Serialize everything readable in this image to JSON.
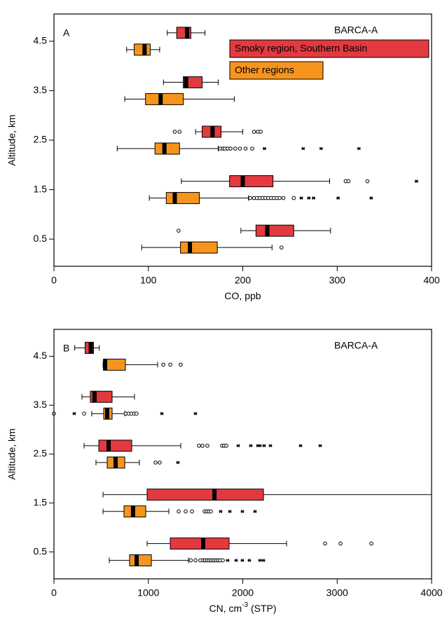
{
  "chart_data": [
    {
      "type": "boxplot",
      "orientation": "horizontal",
      "panel_label": "A",
      "annotation": "BARCA-A",
      "xlabel": "CO, ppb",
      "ylabel": "Altitude, km",
      "xlim": [
        0,
        400
      ],
      "xticks": [
        0,
        100,
        200,
        300,
        400
      ],
      "ylim": [
        -0.05,
        5.05
      ],
      "yticks": [
        0.5,
        1.5,
        2.5,
        3.5,
        4.5
      ],
      "positions": [
        0.5,
        1.5,
        2.5,
        3.5,
        4.5
      ],
      "legend": true,
      "legend_position": "upper right",
      "series": [
        {
          "name": "Smoky region, Southern Basin",
          "color": "#e23a3f",
          "boxes": [
            {
              "whisker_low": 198,
              "q1": 214,
              "median": 226,
              "q3": 254,
              "whisker_high": 293,
              "outliers": [
                132
              ],
              "extremes": []
            },
            {
              "whisker_low": 135,
              "q1": 186,
              "median": 200,
              "q3": 232,
              "whisker_high": 292,
              "outliers": [
                309,
                312,
                332
              ],
              "extremes": [
                384
              ]
            },
            {
              "whisker_low": 150,
              "q1": 157,
              "median": 168,
              "q3": 177,
              "whisker_high": 200,
              "outliers": [
                128,
                133,
                212,
                216,
                219
              ],
              "extremes": []
            },
            {
              "whisker_low": 116,
              "q1": 137,
              "median": 140,
              "q3": 157,
              "whisker_high": 174,
              "outliers": [],
              "extremes": []
            },
            {
              "whisker_low": 120,
              "q1": 130,
              "median": 141,
              "q3": 145,
              "whisker_high": 160,
              "outliers": [],
              "extremes": []
            }
          ]
        },
        {
          "name": "Other regions",
          "color": "#f7941d",
          "boxes": [
            {
              "whisker_low": 93,
              "q1": 134,
              "median": 144,
              "q3": 173,
              "whisker_high": 231,
              "outliers": [
                241
              ],
              "extremes": []
            },
            {
              "whisker_low": 101,
              "q1": 119,
              "median": 128,
              "q3": 154,
              "whisker_high": 206,
              "outliers": [
                208,
                212,
                215,
                218,
                221,
                224,
                227,
                230,
                233,
                236,
                239,
                243,
                254
              ],
              "extremes": [
                262,
                270,
                275,
                301,
                336
              ]
            },
            {
              "whisker_low": 67,
              "q1": 107,
              "median": 117,
              "q3": 133,
              "whisker_high": 174,
              "outliers": [
                176,
                179,
                181,
                184,
                187,
                192,
                197,
                203,
                210
              ],
              "extremes": [
                223,
                264,
                283,
                323
              ]
            },
            {
              "whisker_low": 75,
              "q1": 97,
              "median": 113,
              "q3": 137,
              "whisker_high": 191,
              "outliers": [],
              "extremes": []
            },
            {
              "whisker_low": 77,
              "q1": 85,
              "median": 96,
              "q3": 102,
              "whisker_high": 112,
              "outliers": [],
              "extremes": []
            }
          ]
        }
      ]
    },
    {
      "type": "boxplot",
      "orientation": "horizontal",
      "panel_label": "B",
      "annotation": "BARCA-A",
      "xlabel": "CN, cm",
      "xlabel_sup": "-3",
      "xlabel_suffix": " (STP)",
      "ylabel": "Altitude, km",
      "xlim": [
        0,
        4000
      ],
      "xticks": [
        0,
        1000,
        2000,
        3000,
        4000
      ],
      "ylim": [
        -0.05,
        5.05
      ],
      "yticks": [
        0.5,
        1.5,
        2.5,
        3.5,
        4.5
      ],
      "positions": [
        0.5,
        1.5,
        2.5,
        3.5,
        4.5
      ],
      "legend": false,
      "series": [
        {
          "color": "#e23a3f",
          "boxes": [
            {
              "whisker_low": 987,
              "q1": 1232,
              "median": 1581,
              "q3": 1855,
              "whisker_high": 2464,
              "outliers": [
                2872,
                3035,
                3362
              ],
              "extremes": []
            },
            {
              "whisker_low": 520,
              "q1": 987,
              "median": 1700,
              "q3": 2219,
              "whisker_high": 4000,
              "outliers": [],
              "extremes": []
            },
            {
              "whisker_low": 319,
              "q1": 475,
              "median": 579,
              "q3": 824,
              "whisker_high": 1343,
              "outliers": [
                1536,
                1573,
                1625,
                1781,
                1803,
                1826
              ],
              "extremes": [
                1952,
                2085,
                2160,
                2182,
                2226,
                2293,
                2612,
                2820
              ]
            },
            {
              "whisker_low": 297,
              "q1": 386,
              "median": 430,
              "q3": 616,
              "whisker_high": 853,
              "outliers": [],
              "extremes": []
            },
            {
              "whisker_low": 220,
              "q1": 330,
              "median": 390,
              "q3": 420,
              "whisker_high": 480,
              "outliers": [],
              "extremes": []
            }
          ]
        },
        {
          "color": "#f7941d",
          "boxes": [
            {
              "whisker_low": 586,
              "q1": 801,
              "median": 876,
              "q3": 1032,
              "whisker_high": 1425,
              "outliers": [
                1450,
                1500,
                1550,
                1581,
                1600,
                1620,
                1640,
                1660,
                1680,
                1700,
                1720,
                1740,
                1760,
                1789
              ],
              "extremes": [
                1840,
                1930,
                1996,
                2070,
                2182,
                2219
              ]
            },
            {
              "whisker_low": 520,
              "q1": 742,
              "median": 838,
              "q3": 972,
              "whisker_high": 1217,
              "outliers": [
                1321,
                1395,
                1462,
                1596,
                1618,
                1640,
                1662
              ],
              "extremes": [
                1766,
                1863,
                1996,
                2130
              ]
            },
            {
              "whisker_low": 445,
              "q1": 564,
              "median": 653,
              "q3": 750,
              "whisker_high": 905,
              "outliers": [
                1076,
                1120
              ],
              "extremes": [
                1313
              ]
            },
            {
              "whisker_low": 400,
              "q1": 527,
              "median": 564,
              "q3": 616,
              "whisker_high": 750,
              "outliers": [
                0,
                320,
                760,
                790,
                820,
                850,
                875
              ],
              "extremes": [
                215,
                1143,
                1499
              ]
            },
            {
              "whisker_low": 520,
              "q1": 527,
              "median": 542,
              "q3": 757,
              "whisker_high": 1098,
              "outliers": [
                1158,
                1232,
                1343
              ],
              "extremes": []
            }
          ]
        }
      ]
    }
  ]
}
